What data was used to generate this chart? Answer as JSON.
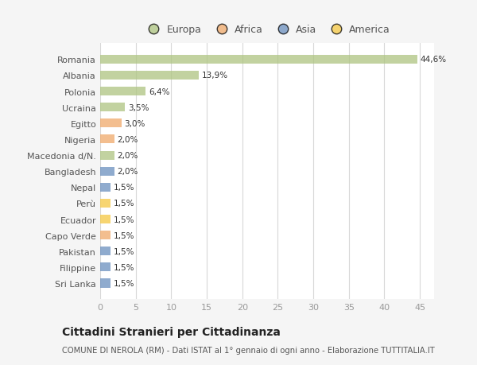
{
  "categories": [
    "Romania",
    "Albania",
    "Polonia",
    "Ucraina",
    "Egitto",
    "Nigeria",
    "Macedonia d/N.",
    "Bangladesh",
    "Nepal",
    "Perù",
    "Ecuador",
    "Capo Verde",
    "Pakistan",
    "Filippine",
    "Sri Lanka"
  ],
  "values": [
    44.6,
    13.9,
    6.4,
    3.5,
    3.0,
    2.0,
    2.0,
    2.0,
    1.5,
    1.5,
    1.5,
    1.5,
    1.5,
    1.5,
    1.5
  ],
  "labels": [
    "44,6%",
    "13,9%",
    "6,4%",
    "3,5%",
    "3,0%",
    "2,0%",
    "2,0%",
    "2,0%",
    "1,5%",
    "1,5%",
    "1,5%",
    "1,5%",
    "1,5%",
    "1,5%",
    "1,5%"
  ],
  "continents": [
    "Europa",
    "Europa",
    "Europa",
    "Europa",
    "Africa",
    "Africa",
    "Europa",
    "Asia",
    "Asia",
    "America",
    "America",
    "Africa",
    "Asia",
    "Asia",
    "Asia"
  ],
  "continent_colors": {
    "Europa": "#aec480",
    "Africa": "#f0a96a",
    "Asia": "#6a8fbe",
    "America": "#f5c842"
  },
  "legend_items": [
    "Europa",
    "Africa",
    "Asia",
    "America"
  ],
  "plot_bg_color": "#ffffff",
  "fig_bg_color": "#f5f5f5",
  "title": "Cittadini Stranieri per Cittadinanza",
  "subtitle": "COMUNE DI NEROLA (RM) - Dati ISTAT al 1° gennaio di ogni anno - Elaborazione TUTTITALIA.IT",
  "xlim": [
    0,
    47
  ],
  "grid_color": "#d8d8d8",
  "tick_color": "#999999",
  "label_color": "#555555",
  "text_color": "#333333",
  "bar_alpha": 0.75,
  "bar_height": 0.55
}
